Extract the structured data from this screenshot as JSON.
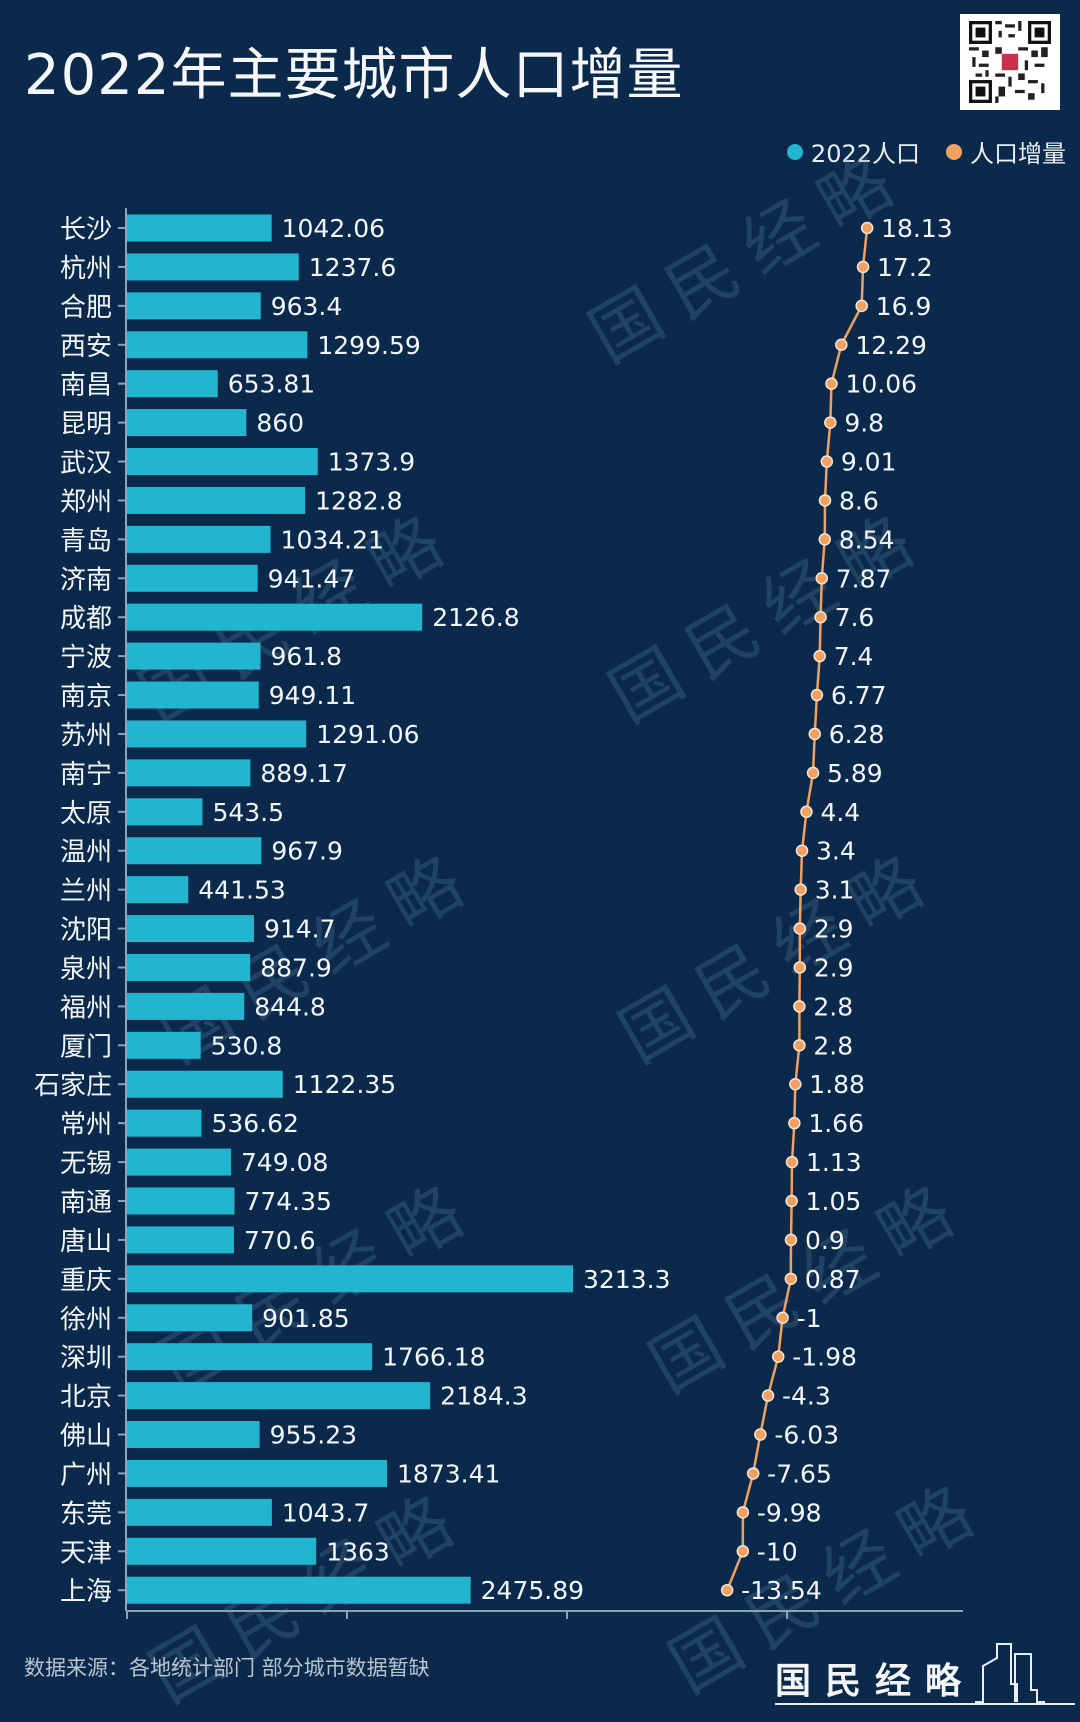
{
  "title": "2022年主要城市人口增量",
  "legend": [
    {
      "label": "2022人口",
      "color": "#22b5d0"
    },
    {
      "label": "人口增量",
      "color": "#f0a060"
    }
  ],
  "footer": {
    "source": "数据来源：各地统计部门 部分城市数据暂缺",
    "brand": "国民经略"
  },
  "watermark_text": "国民经略",
  "colors": {
    "background": "#0b2a4b",
    "bar": "#22b5d0",
    "line": "#f0a060",
    "axis": "#8fa3b8"
  },
  "chart_data": {
    "type": "bar+line",
    "title": "2022年主要城市人口增量",
    "categories": [
      "长沙",
      "杭州",
      "合肥",
      "西安",
      "南昌",
      "昆明",
      "武汉",
      "郑州",
      "青岛",
      "济南",
      "成都",
      "宁波",
      "南京",
      "苏州",
      "南宁",
      "太原",
      "温州",
      "兰州",
      "沈阳",
      "泉州",
      "福州",
      "厦门",
      "石家庄",
      "常州",
      "无锡",
      "南通",
      "唐山",
      "重庆",
      "徐州",
      "深圳",
      "北京",
      "佛山",
      "广州",
      "东莞",
      "天津",
      "上海"
    ],
    "series": [
      {
        "name": "2022人口",
        "type": "bar",
        "color": "#22b5d0",
        "values": [
          1042.06,
          1237.6,
          963.4,
          1299.59,
          653.81,
          860,
          1373.9,
          1282.8,
          1034.21,
          941.47,
          2126.8,
          961.8,
          949.11,
          1291.06,
          889.17,
          543.5,
          967.9,
          441.53,
          914.7,
          887.9,
          844.8,
          530.8,
          1122.35,
          536.62,
          749.08,
          774.35,
          770.6,
          3213.3,
          901.85,
          1766.18,
          2184.3,
          955.23,
          1873.41,
          1043.7,
          1363,
          2475.89
        ]
      },
      {
        "name": "人口增量",
        "type": "line",
        "color": "#f0a060",
        "values": [
          18.13,
          17.2,
          16.9,
          12.29,
          10.06,
          9.8,
          9.01,
          8.6,
          8.54,
          7.87,
          7.6,
          7.4,
          6.77,
          6.28,
          5.89,
          4.4,
          3.4,
          3.1,
          2.9,
          2.9,
          2.8,
          2.8,
          1.88,
          1.66,
          1.13,
          1.05,
          0.9,
          0.87,
          -1,
          -1.98,
          -4.3,
          -6.03,
          -7.65,
          -9.98,
          -10,
          -13.54
        ]
      }
    ],
    "orientation": "horizontal",
    "xlabel": "",
    "ylabel": "",
    "grid": false,
    "legend_position": "top-right",
    "data_labels": true
  }
}
